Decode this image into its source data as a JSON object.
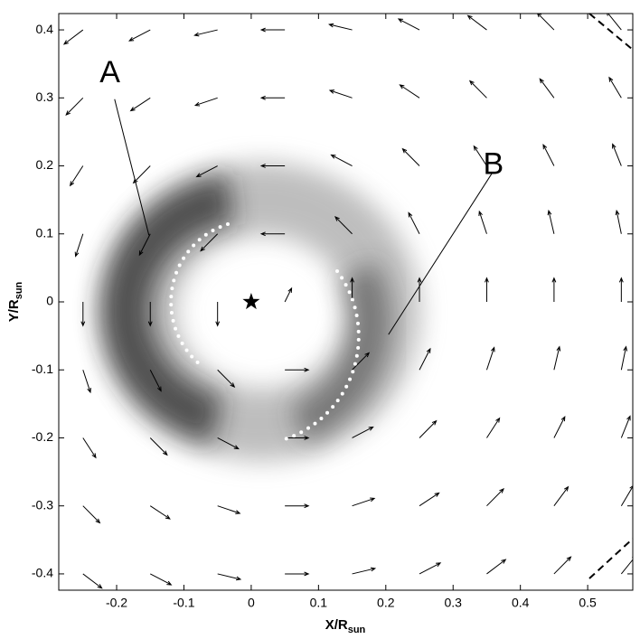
{
  "chart_data": {
    "type": "quiver",
    "xlim": [
      -0.286,
      0.567
    ],
    "ylim": [
      -0.424,
      0.424
    ],
    "xticks": [
      -0.2,
      -0.1,
      0,
      0.1,
      0.2,
      0.3,
      0.4,
      0.5
    ],
    "yticks": [
      -0.4,
      -0.3,
      -0.2,
      -0.1,
      0,
      0.1,
      0.2,
      0.3,
      0.4
    ],
    "xlabel": {
      "text": "X/R",
      "subscript": "sun"
    },
    "ylabel": {
      "text": "Y/R",
      "subscript": "sun"
    },
    "arrow_color": "#000000",
    "arrows": {
      "x": [
        -0.25,
        -0.15,
        -0.05,
        0.05,
        0.15,
        0.25,
        0.35,
        0.45,
        0.55,
        -0.25,
        -0.15,
        -0.05,
        0.05,
        0.15,
        0.25,
        0.35,
        0.45,
        0.55,
        -0.25,
        -0.15,
        -0.05,
        0.05,
        0.15,
        0.25,
        0.35,
        0.45,
        0.55,
        -0.25,
        -0.15,
        -0.05,
        0.05,
        0.15,
        0.25,
        0.35,
        0.45,
        0.55,
        -0.25,
        -0.15,
        -0.05,
        0.05,
        0.15,
        0.25,
        0.35,
        0.45,
        0.55,
        -0.25,
        -0.15,
        -0.05,
        0.05,
        0.15,
        0.25,
        0.35,
        0.45,
        0.55,
        -0.25,
        -0.15,
        -0.05,
        0.05,
        0.15,
        0.25,
        0.35,
        0.45,
        0.55,
        -0.25,
        -0.15,
        -0.05,
        0.05,
        0.15,
        0.25,
        0.35,
        0.45,
        0.55,
        -0.25,
        -0.15,
        -0.05,
        0.05,
        0.15,
        0.25,
        0.35,
        0.45,
        0.55
      ],
      "y": [
        0.4,
        0.4,
        0.4,
        0.4,
        0.4,
        0.4,
        0.4,
        0.4,
        0.4,
        0.3,
        0.3,
        0.3,
        0.3,
        0.3,
        0.3,
        0.3,
        0.3,
        0.3,
        0.2,
        0.2,
        0.2,
        0.2,
        0.2,
        0.2,
        0.2,
        0.2,
        0.2,
        0.1,
        0.1,
        0.1,
        0.1,
        0.1,
        0.1,
        0.1,
        0.1,
        0.1,
        0,
        0,
        0,
        0,
        0,
        0,
        0,
        0,
        0,
        -0.1,
        -0.1,
        -0.1,
        -0.1,
        -0.1,
        -0.1,
        -0.1,
        -0.1,
        -0.1,
        -0.2,
        -0.2,
        -0.2,
        -0.2,
        -0.2,
        -0.2,
        -0.2,
        -0.2,
        -0.2,
        -0.3,
        -0.3,
        -0.3,
        -0.3,
        -0.3,
        -0.3,
        -0.3,
        -0.3,
        -0.3,
        -0.4,
        -0.4,
        -0.4,
        -0.4,
        -0.4,
        -0.4,
        -0.4,
        -0.4,
        -0.4
      ],
      "u": [
        -0.028,
        -0.031,
        -0.034,
        -0.035,
        -0.034,
        -0.031,
        -0.028,
        -0.025,
        -0.022,
        -0.025,
        -0.029,
        -0.033,
        -0.035,
        -0.033,
        -0.029,
        -0.025,
        -0.021,
        -0.018,
        -0.019,
        -0.025,
        -0.031,
        -0.035,
        -0.031,
        -0.025,
        -0.019,
        -0.016,
        -0.013,
        -0.011,
        -0.016,
        -0.025,
        -0.035,
        -0.025,
        -0.016,
        -0.011,
        -0.008,
        -0.007,
        0,
        0,
        0,
        0.01,
        0,
        0,
        0,
        0,
        0,
        0.011,
        0.016,
        0.025,
        0.035,
        0.025,
        0.016,
        0.011,
        0.008,
        0.007,
        0.019,
        0.025,
        0.031,
        0.035,
        0.031,
        0.025,
        0.019,
        0.016,
        0.013,
        0.025,
        0.029,
        0.033,
        0.035,
        0.033,
        0.029,
        0.025,
        0.021,
        0.018,
        0.028,
        0.031,
        0.034,
        0.035,
        0.034,
        0.031,
        0.028,
        0.025,
        0.022
      ],
      "v": [
        -0.021,
        -0.016,
        -0.008,
        0,
        0.008,
        0.016,
        0.021,
        0.025,
        0.027,
        -0.025,
        -0.019,
        -0.011,
        0,
        0.011,
        0.019,
        0.025,
        0.028,
        0.03,
        -0.029,
        -0.025,
        -0.016,
        0,
        0.016,
        0.025,
        0.029,
        0.031,
        0.032,
        -0.033,
        -0.031,
        -0.025,
        0,
        0.025,
        0.031,
        0.033,
        0.034,
        0.034,
        -0.035,
        -0.035,
        -0.035,
        0.02,
        0.035,
        0.035,
        0.035,
        0.035,
        0.035,
        -0.033,
        -0.031,
        -0.025,
        0,
        0.025,
        0.031,
        0.033,
        0.034,
        0.034,
        -0.029,
        -0.025,
        -0.016,
        0,
        0.016,
        0.025,
        0.029,
        0.031,
        0.032,
        -0.025,
        -0.019,
        -0.011,
        0,
        0.011,
        0.019,
        0.025,
        0.028,
        0.03,
        -0.021,
        -0.016,
        -0.008,
        0,
        0.008,
        0.016,
        0.021,
        0.025,
        0.027
      ]
    },
    "star": {
      "x": 0,
      "y": 0
    },
    "annotations": [
      {
        "text": "A",
        "x": -0.21,
        "y": 0.335,
        "line": [
          [
            -0.203,
            0.298
          ],
          [
            -0.152,
            0.098
          ]
        ]
      },
      {
        "text": "B",
        "x": 0.36,
        "y": 0.2,
        "line": [
          [
            0.359,
            0.191
          ],
          [
            0.204,
            -0.048
          ]
        ]
      }
    ]
  }
}
